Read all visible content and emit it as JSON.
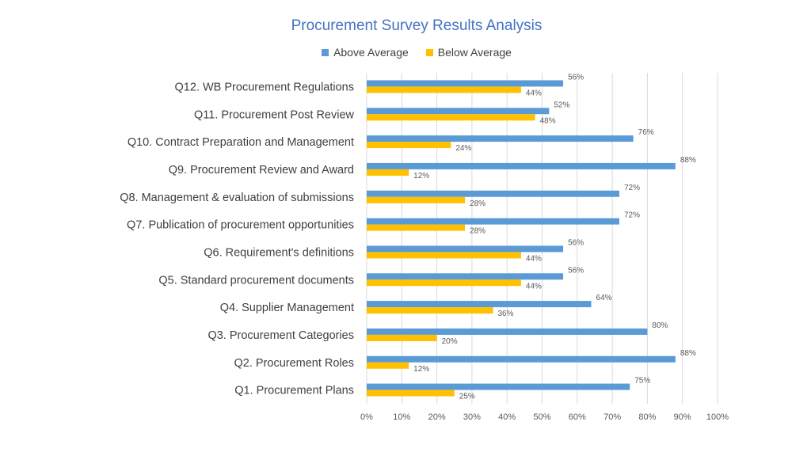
{
  "chart_data": {
    "type": "bar",
    "orientation": "horizontal",
    "title": "Procurement Survey Results Analysis",
    "xlabel": "",
    "ylabel": "",
    "xlim": [
      0,
      100
    ],
    "x_tick_labels": [
      "0%",
      "10%",
      "20%",
      "30%",
      "40%",
      "50%",
      "60%",
      "70%",
      "80%",
      "90%",
      "100%"
    ],
    "grid": "vertical",
    "legend_position": "top",
    "categories": [
      "Q12. WB Procurement Regulations",
      "Q11.  Procurement Post Review",
      "Q10. Contract Preparation and Management",
      "Q9. Procurement Review and Award",
      "Q8. Management & evaluation of submissions",
      "Q7. Publication of procurement opportunities",
      "Q6. Requirement's definitions",
      "Q5. Standard procurement documents",
      "Q4. Supplier Management",
      "Q3. Procurement Categories",
      "Q2. Procurement Roles",
      "Q1. Procurement Plans"
    ],
    "series": [
      {
        "name": "Above Average",
        "color": "#5B9BD5",
        "values": [
          56,
          52,
          76,
          88,
          72,
          72,
          56,
          56,
          64,
          80,
          88,
          75
        ],
        "labels": [
          "56%",
          "52%",
          "76%",
          "88%",
          "72%",
          "72%",
          "56%",
          "56%",
          "64%",
          "80%",
          "88%",
          "75%"
        ]
      },
      {
        "name": "Below Average",
        "color": "#FFC000",
        "values": [
          44,
          48,
          24,
          12,
          28,
          28,
          44,
          44,
          36,
          20,
          12,
          25
        ],
        "labels": [
          "44%",
          "48%",
          "24%",
          "12%",
          "28%",
          "28%",
          "44%",
          "44%",
          "36%",
          "20%",
          "12%",
          "25%"
        ]
      }
    ]
  }
}
